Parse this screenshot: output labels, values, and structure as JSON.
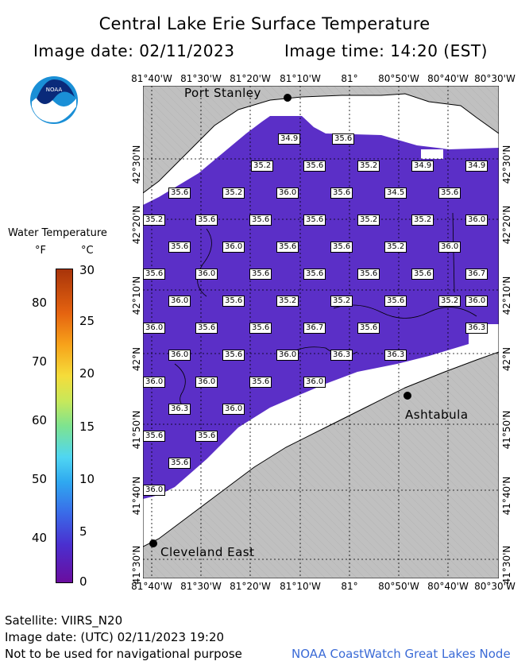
{
  "header": {
    "title": "Central Lake Erie Surface Temperature",
    "image_date": "Image date: 02/11/2023",
    "image_time": "Image time: 14:20 (EST)"
  },
  "logo_text": "NOAA",
  "lon_labels": [
    "81°40'W",
    "81°30'W",
    "81°20'W",
    "81°10'W",
    "81°",
    "80°50'W",
    "80°40'W",
    "80°30'W"
  ],
  "lat_labels": [
    "42°30'N",
    "42°20'N",
    "42°10'N",
    "42°N",
    "41°50'N",
    "41°40'N",
    "41°30'N"
  ],
  "cities": [
    {
      "name": "Port Stanley"
    },
    {
      "name": "Ashtabula"
    },
    {
      "name": "Cleveland East"
    }
  ],
  "temperatures": [
    "34.9",
    "35.6",
    "35.2",
    "35.6",
    "35.2",
    "34.9",
    "34.9",
    "35.6",
    "35.2",
    "36.0",
    "35.6",
    "34.5",
    "35.6",
    "35.2",
    "35.6",
    "35.6",
    "35.6",
    "35.2",
    "35.2",
    "36.0",
    "35.6",
    "36.0",
    "35.6",
    "35.6",
    "35.2",
    "36.0",
    "35.6",
    "36.0",
    "35.6",
    "35.6",
    "35.6",
    "35.6",
    "36.7",
    "36.0",
    "35.6",
    "35.2",
    "35.2",
    "35.6",
    "35.2",
    "36.0",
    "36.0",
    "35.6",
    "35.6",
    "36.7",
    "35.6",
    "36.3",
    "36.0",
    "35.6",
    "36.0",
    "36.3",
    "36.3",
    "36.0",
    "36.0",
    "35.6",
    "36.0",
    "36.3",
    "36.0",
    "35.6",
    "35.6",
    "35.6",
    "36.0"
  ],
  "legend": {
    "title": "Water Temperature",
    "unit_f": "°F",
    "unit_c": "°C",
    "ticks_f": [
      "80",
      "70",
      "60",
      "50",
      "40"
    ],
    "ticks_c": [
      "30",
      "25",
      "20",
      "15",
      "10",
      "5",
      "0"
    ]
  },
  "colors": {
    "water": "#5b2fc7",
    "land": "#c0c0c0",
    "ice": "#ffffff"
  },
  "footer": {
    "satellite": "Satellite: VIIRS_N20",
    "utc_date": "Image date: (UTC) 02/11/2023  19:20",
    "disclaimer": "Not to be used for navigational purpose",
    "credit": "NOAA CoastWatch Great Lakes Node"
  }
}
